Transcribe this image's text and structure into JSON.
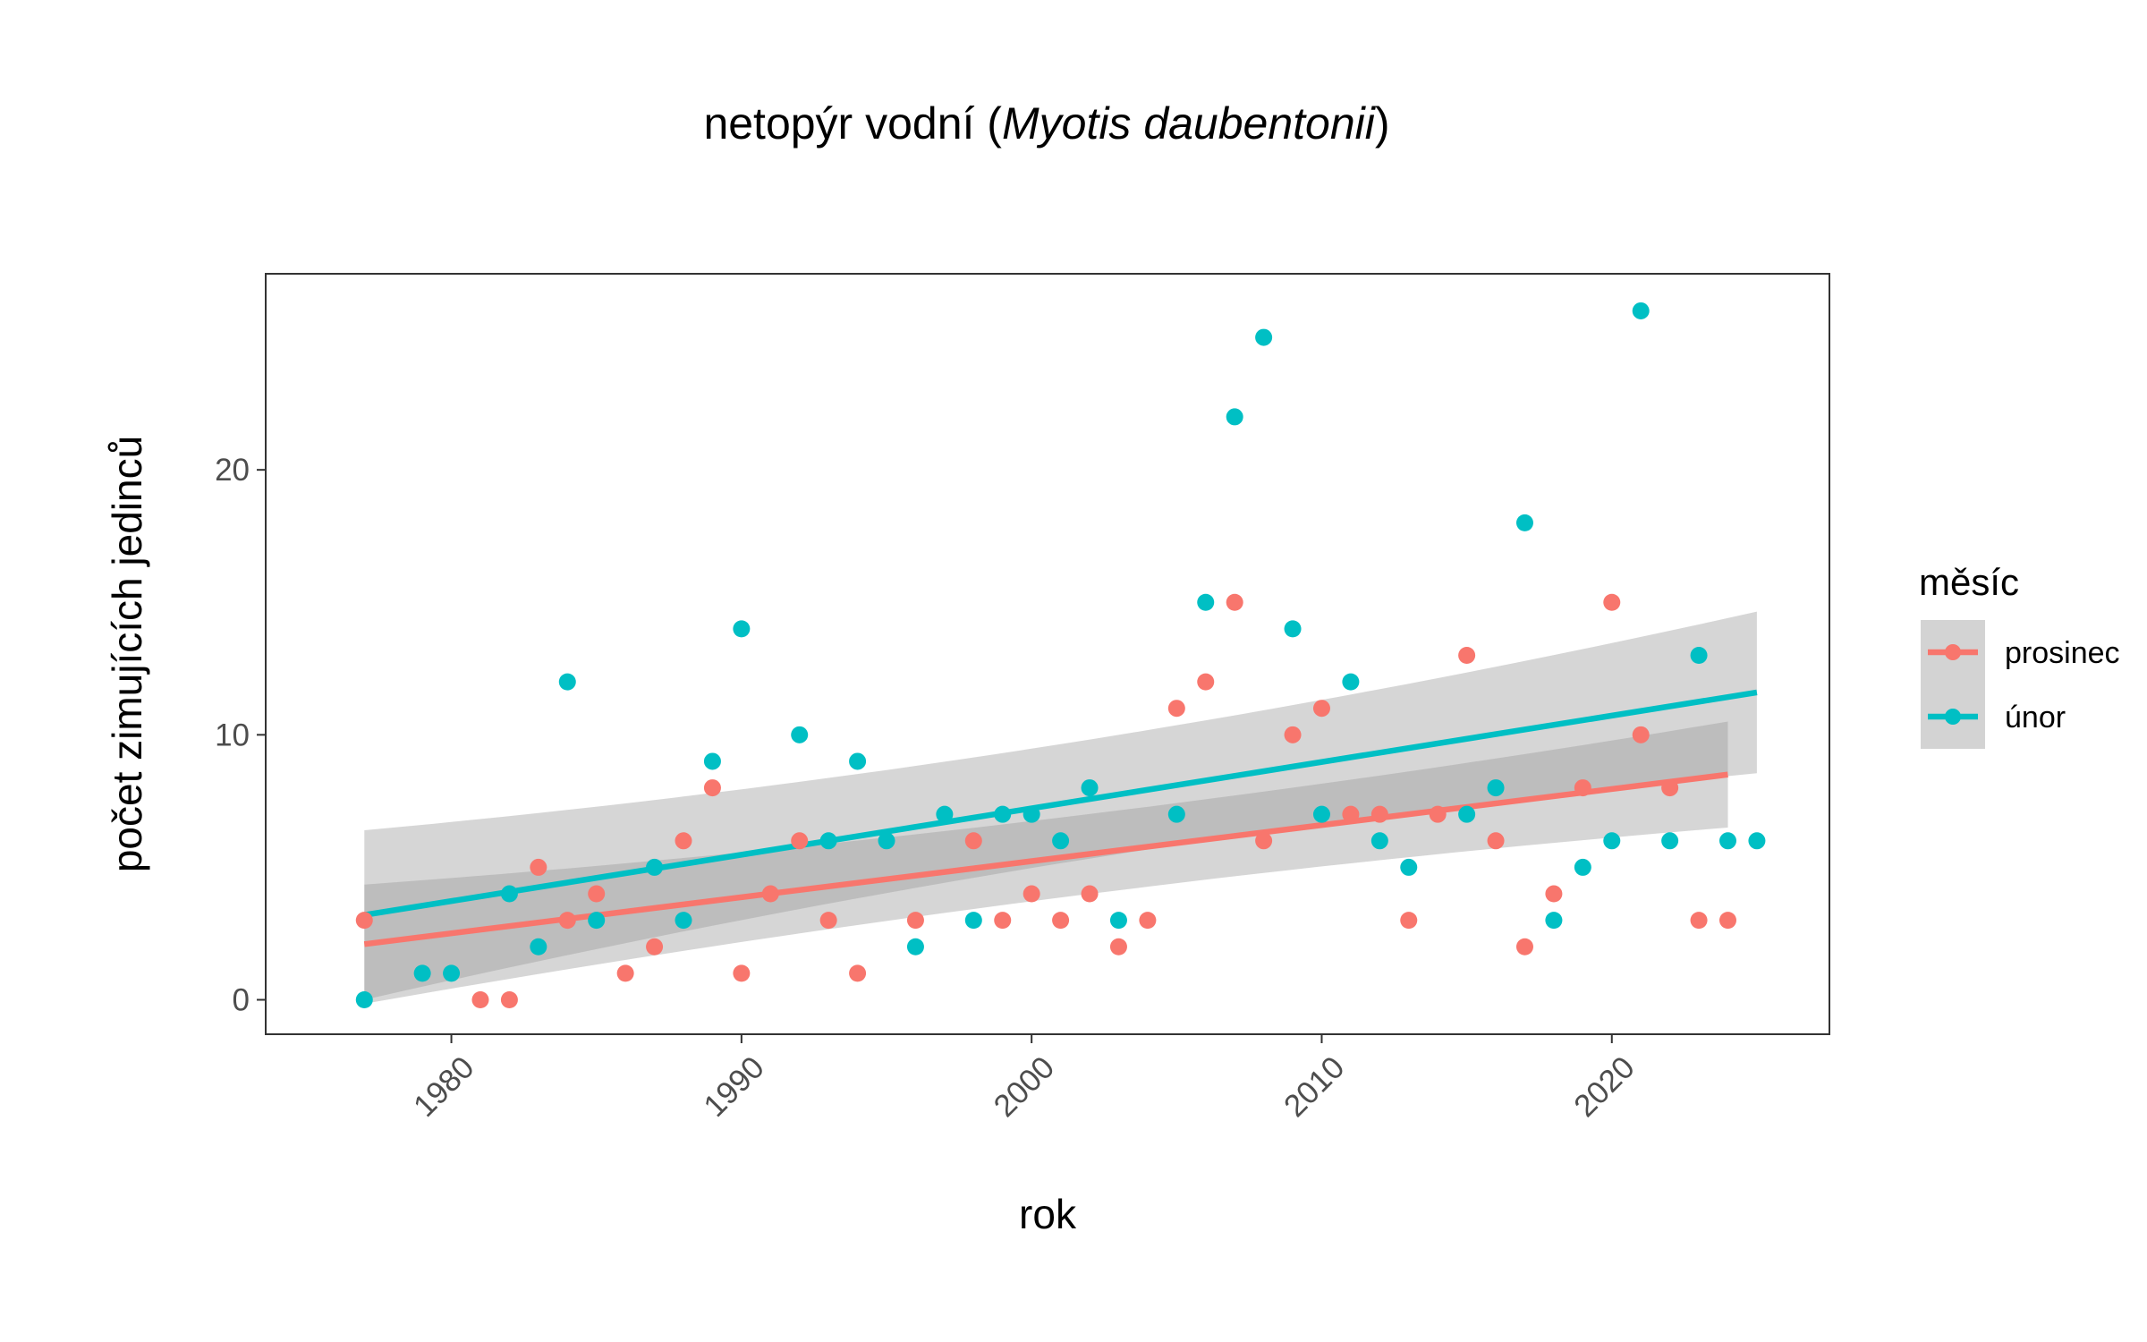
{
  "chart_data": {
    "type": "scatter",
    "title": {
      "prefix": "netopýr vodní (",
      "species": "Myotis daubentonii",
      "suffix": ")"
    },
    "xlabel": "rok",
    "ylabel": "počet zimujících jedinců",
    "xlim": [
      1973.6,
      2027.5
    ],
    "ylim": [
      -1.3,
      27.4
    ],
    "x_ticks": [
      1980,
      1990,
      2000,
      2010,
      2020
    ],
    "y_ticks": [
      0,
      10,
      20
    ],
    "grid": false,
    "legend": {
      "title": "měsíc",
      "position": "right"
    },
    "series": [
      {
        "name": "prosinec",
        "color": "#F8766D",
        "points": [
          [
            1977,
            3
          ],
          [
            1981,
            0
          ],
          [
            1982,
            0
          ],
          [
            1983,
            5
          ],
          [
            1984,
            3
          ],
          [
            1985,
            4
          ],
          [
            1986,
            1
          ],
          [
            1987,
            2
          ],
          [
            1988,
            6
          ],
          [
            1989,
            8
          ],
          [
            1990,
            1
          ],
          [
            1991,
            4
          ],
          [
            1992,
            6
          ],
          [
            1993,
            3
          ],
          [
            1994,
            1
          ],
          [
            1996,
            3
          ],
          [
            1998,
            6
          ],
          [
            1999,
            3
          ],
          [
            2000,
            4
          ],
          [
            2001,
            3
          ],
          [
            2002,
            4
          ],
          [
            2003,
            2
          ],
          [
            2004,
            3
          ],
          [
            2005,
            11
          ],
          [
            2006,
            12
          ],
          [
            2007,
            15
          ],
          [
            2008,
            6
          ],
          [
            2009,
            10
          ],
          [
            2010,
            11
          ],
          [
            2011,
            7
          ],
          [
            2012,
            7
          ],
          [
            2013,
            3
          ],
          [
            2014,
            7
          ],
          [
            2015,
            13
          ],
          [
            2016,
            6
          ],
          [
            2017,
            2
          ],
          [
            2018,
            4
          ],
          [
            2019,
            8
          ],
          [
            2020,
            15
          ],
          [
            2021,
            10
          ],
          [
            2022,
            8
          ],
          [
            2023,
            3
          ],
          [
            2024,
            3
          ]
        ],
        "trend": {
          "x": [
            1977,
            2024
          ],
          "y": [
            2.1,
            8.5
          ],
          "ci_lower": [
            -0.2,
            6.5
          ],
          "ci_upper": [
            4.3,
            10.5
          ]
        }
      },
      {
        "name": "únor",
        "color": "#00BFC4",
        "points": [
          [
            1977,
            0
          ],
          [
            1979,
            1
          ],
          [
            1980,
            1
          ],
          [
            1982,
            4
          ],
          [
            1983,
            2
          ],
          [
            1984,
            12
          ],
          [
            1985,
            3
          ],
          [
            1987,
            5
          ],
          [
            1988,
            3
          ],
          [
            1989,
            9
          ],
          [
            1990,
            14
          ],
          [
            1992,
            10
          ],
          [
            1993,
            6
          ],
          [
            1994,
            9
          ],
          [
            1995,
            6
          ],
          [
            1996,
            2
          ],
          [
            1997,
            7
          ],
          [
            1998,
            3
          ],
          [
            1999,
            7
          ],
          [
            2000,
            7
          ],
          [
            2001,
            6
          ],
          [
            2002,
            8
          ],
          [
            2003,
            3
          ],
          [
            2005,
            7
          ],
          [
            2006,
            15
          ],
          [
            2007,
            22
          ],
          [
            2008,
            25
          ],
          [
            2009,
            14
          ],
          [
            2010,
            7
          ],
          [
            2011,
            12
          ],
          [
            2012,
            6
          ],
          [
            2013,
            5
          ],
          [
            2015,
            7
          ],
          [
            2016,
            8
          ],
          [
            2017,
            18
          ],
          [
            2018,
            3
          ],
          [
            2019,
            5
          ],
          [
            2020,
            6
          ],
          [
            2021,
            26
          ],
          [
            2022,
            6
          ],
          [
            2023,
            13
          ],
          [
            2024,
            6
          ],
          [
            2025,
            6
          ]
        ],
        "trend": {
          "x": [
            1977,
            2025
          ],
          "y": [
            3.2,
            11.6
          ],
          "ci_lower": [
            0.0,
            8.6
          ],
          "ci_upper": [
            6.4,
            14.7
          ]
        }
      }
    ]
  }
}
